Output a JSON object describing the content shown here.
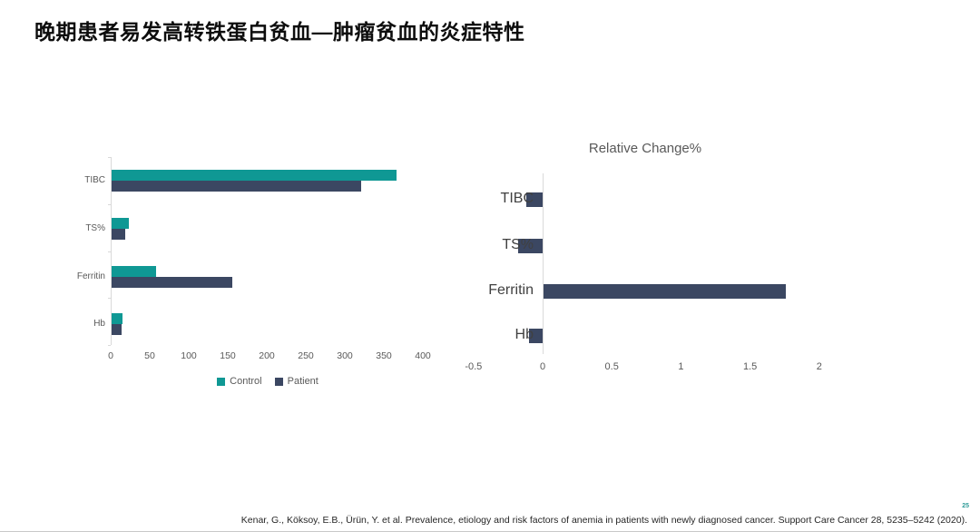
{
  "slide": {
    "title": "晚期患者易发高转铁蛋白贫血—肿瘤贫血的炎症特性",
    "page_number": "25",
    "citation": "Kenar, G., Köksoy, E.B., Ürün, Y. et al. Prevalence, etiology and risk factors of anemia in patients with newly diagnosed cancer. Support Care Cancer 28, 5235–5242 (2020)."
  },
  "colors": {
    "control": "#0F9894",
    "patient": "#3B4762",
    "axis": "#D9D9D9",
    "tick_text": "#595959",
    "label_text": "#404040",
    "title_text": "#0D0D0D",
    "page_number": "#2E9B98"
  },
  "chart_data": [
    {
      "type": "bar",
      "orientation": "horizontal",
      "title": "",
      "categories": [
        "TIBC",
        "TS%",
        "Ferritin",
        "Hb"
      ],
      "series": [
        {
          "name": "Control",
          "color": "#0F9894",
          "values": [
            365,
            22,
            57,
            14
          ]
        },
        {
          "name": "Patient",
          "color": "#3B4762",
          "values": [
            320,
            18,
            155,
            13
          ]
        }
      ],
      "xlim": [
        0,
        400
      ],
      "xticks": [
        0,
        50,
        100,
        150,
        200,
        250,
        300,
        350,
        400
      ],
      "legend_position": "bottom",
      "grid": false
    },
    {
      "type": "bar",
      "orientation": "horizontal",
      "title": "Relative Change%",
      "categories": [
        "TIBC",
        "TS%",
        "Ferritin",
        "Hb"
      ],
      "series": [
        {
          "name": "Relative Change%",
          "color": "#3B4762",
          "values": [
            -0.12,
            -0.18,
            1.75,
            -0.1
          ]
        }
      ],
      "xlim": [
        -0.5,
        2
      ],
      "xticks": [
        -0.5,
        0,
        0.5,
        1,
        1.5,
        2
      ],
      "legend_position": "none",
      "grid": false
    }
  ]
}
